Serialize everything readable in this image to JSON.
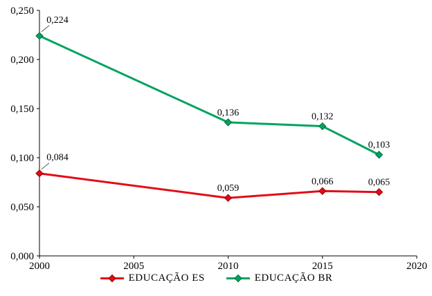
{
  "chart_data": {
    "type": "line",
    "x": [
      2000,
      2010,
      2015,
      2018
    ],
    "series": [
      {
        "name": "EDUCAÇÃO ES",
        "color": "#e30b17",
        "edge_color": "#8f0007",
        "values": [
          0.084,
          0.059,
          0.066,
          0.065
        ],
        "labels": [
          "0,084",
          "0,059",
          "0,066",
          "0,065"
        ]
      },
      {
        "name": "EDUCAÇÃO BR",
        "color": "#00a35f",
        "edge_color": "#006b3f",
        "values": [
          0.224,
          0.136,
          0.132,
          0.103
        ],
        "labels": [
          "0,224",
          "0,136",
          "0,132",
          "0,103"
        ]
      }
    ],
    "xlim": [
      2000,
      2020
    ],
    "ylim": [
      0,
      0.25
    ],
    "x_ticks": [
      "2000",
      "2005",
      "2010",
      "2015",
      "2020"
    ],
    "x_tick_values": [
      2000,
      2005,
      2010,
      2015,
      2020
    ],
    "y_ticks": [
      "0,000",
      "0,050",
      "0,100",
      "0,150",
      "0,200",
      "0,250"
    ],
    "y_tick_values": [
      0,
      0.05,
      0.1,
      0.15,
      0.2,
      0.25
    ],
    "title": "",
    "xlabel": "",
    "ylabel": "",
    "grid": false,
    "legend_position": "bottom"
  }
}
